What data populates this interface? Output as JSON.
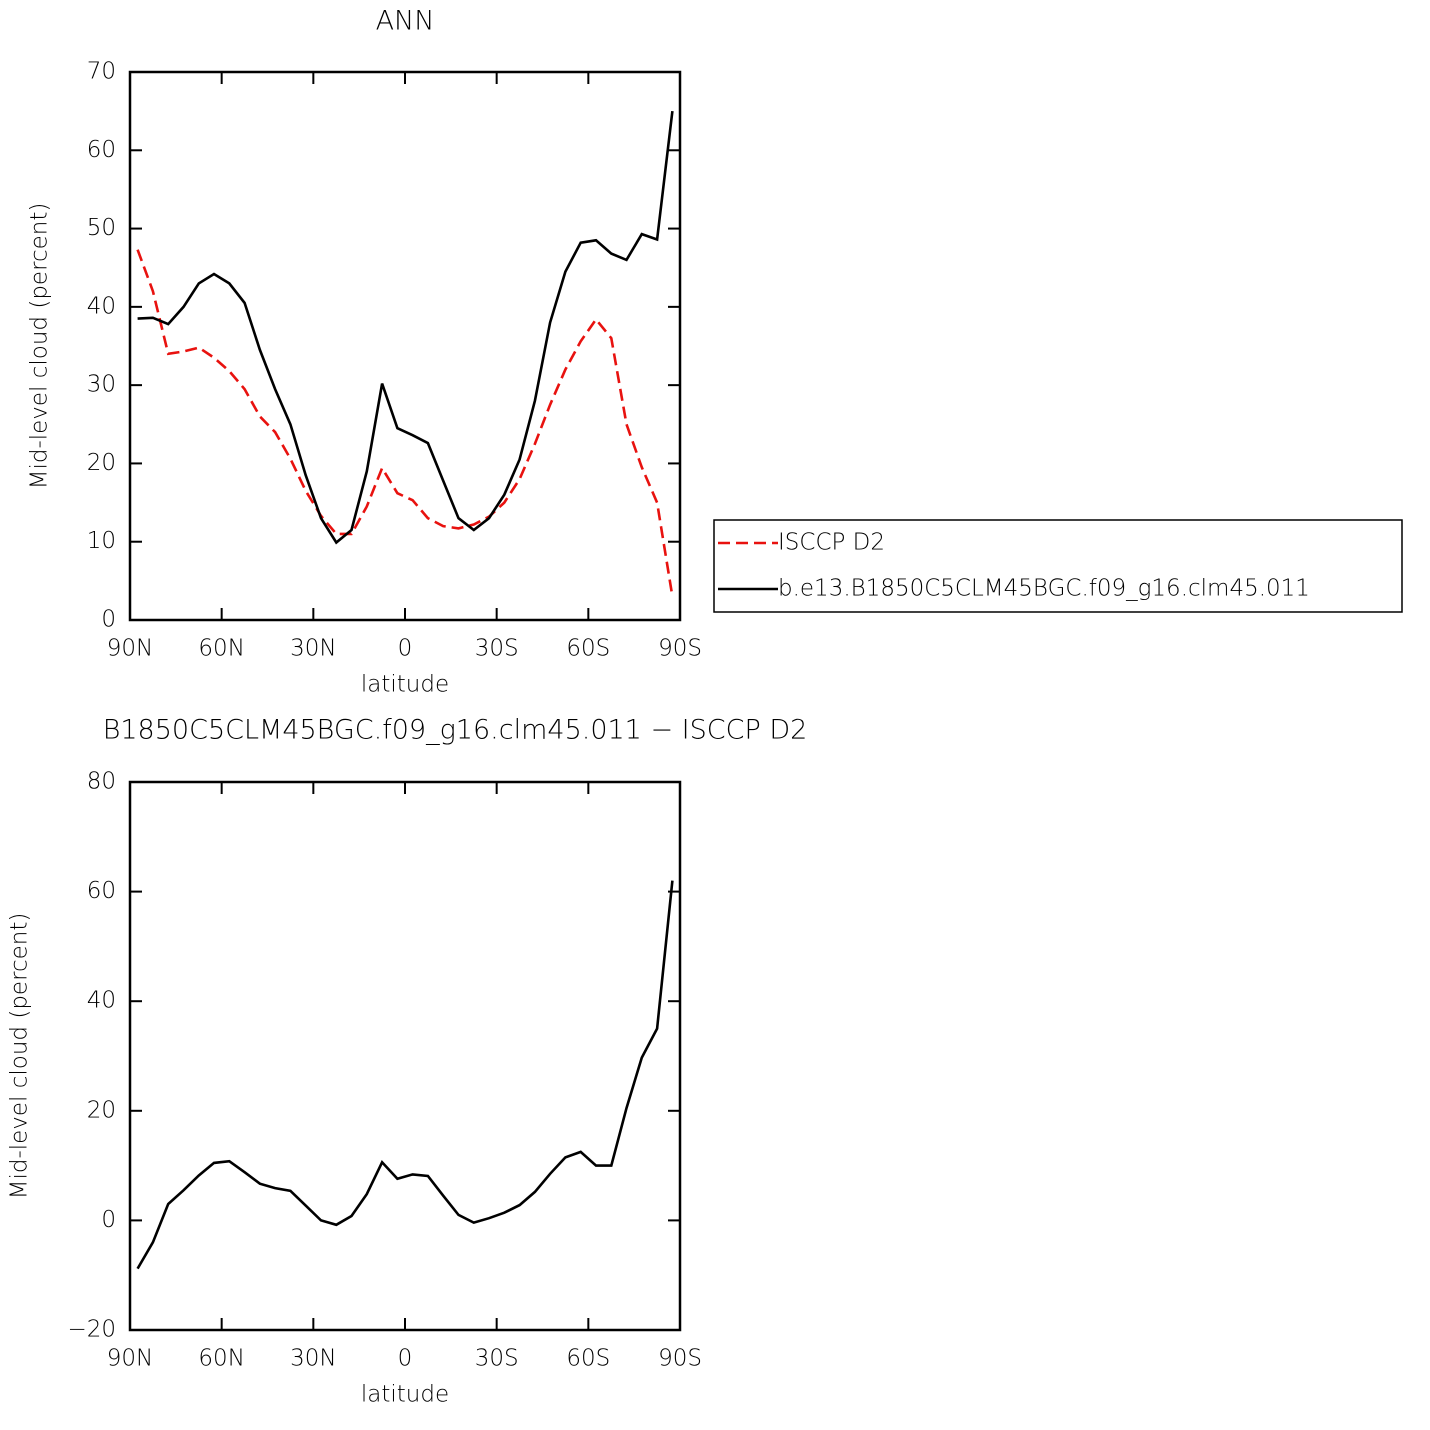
{
  "chart_data": [
    {
      "type": "line",
      "title": "ANN",
      "xlabel": "latitude",
      "ylabel": "Mid-level cloud (percent)",
      "x": [
        87.5,
        82.5,
        77.5,
        72.5,
        67.5,
        62.5,
        57.5,
        52.5,
        47.5,
        42.5,
        37.5,
        32.5,
        27.5,
        22.5,
        17.5,
        12.5,
        7.5,
        2.5,
        -2.5,
        -7.5,
        -12.5,
        -17.5,
        -22.5,
        -27.5,
        -32.5,
        -37.5,
        -42.5,
        -47.5,
        -52.5,
        -57.5,
        -62.5,
        -67.5,
        -72.5,
        -77.5,
        -82.5,
        -87.5
      ],
      "series": [
        {
          "name": "ISCCP D2",
          "color": "#e8120f",
          "line_style": "dashed",
          "values": [
            47.3,
            42,
            34,
            34.3,
            34.8,
            33.5,
            31.8,
            29.5,
            26,
            24,
            20.6,
            16.5,
            13.3,
            11,
            11,
            14.5,
            19.4,
            16.2,
            15.3,
            13,
            12,
            11.7,
            12.2,
            13.2,
            15,
            18,
            22.5,
            27.5,
            32,
            35.6,
            38.4,
            36,
            25,
            19.5,
            15,
            3
          ]
        },
        {
          "name": "b.e13.B1850C5CLM45BGC.f09_g16.clm45.011",
          "color": "#000000",
          "line_style": "solid",
          "values": [
            38.5,
            38.6,
            37.8,
            40,
            43,
            44.2,
            43,
            40.5,
            34.5,
            29.5,
            25,
            18.5,
            13,
            9.9,
            11.5,
            19,
            30.2,
            24.5,
            23.6,
            22.6,
            17.8,
            13,
            11.5,
            13,
            16,
            20.5,
            28,
            38,
            44.5,
            48.2,
            48.5,
            46.8,
            46,
            49.3,
            48.6,
            65
          ]
        }
      ],
      "xlim": [
        90,
        -90
      ],
      "xticks": [
        {
          "value": 90,
          "label": "90N"
        },
        {
          "value": 60,
          "label": "60N"
        },
        {
          "value": 30,
          "label": "30N"
        },
        0,
        {
          "value": -30,
          "label": "30S"
        },
        {
          "value": -60,
          "label": "60S"
        },
        {
          "value": -90,
          "label": "90S"
        }
      ],
      "ylim": [
        0,
        70
      ],
      "yticks": [
        0,
        10,
        20,
        30,
        40,
        50,
        60,
        70
      ],
      "grid": false,
      "legend": "right"
    },
    {
      "type": "line",
      "title": "B1850C5CLM45BGC.f09_g16.clm45.011 − ISCCP D2",
      "xlabel": "latitude",
      "ylabel": "Mid-level cloud (percent)",
      "x": [
        87.5,
        82.5,
        77.5,
        72.5,
        67.5,
        62.5,
        57.5,
        52.5,
        47.5,
        42.5,
        37.5,
        32.5,
        27.5,
        22.5,
        17.5,
        12.5,
        7.5,
        2.5,
        -2.5,
        -7.5,
        -12.5,
        -17.5,
        -22.5,
        -27.5,
        -32.5,
        -37.5,
        -42.5,
        -47.5,
        -52.5,
        -57.5,
        -62.5,
        -67.5,
        -72.5,
        -77.5,
        -82.5,
        -87.5
      ],
      "series": [
        {
          "color": "#000000",
          "line_style": "solid",
          "values": [
            -8.8,
            -4,
            3,
            5.5,
            8.2,
            10.5,
            10.8,
            8.8,
            6.7,
            5.9,
            5.4,
            2.7,
            0,
            -0.8,
            0.8,
            4.8,
            10.6,
            7.6,
            8.4,
            8.1,
            4.5,
            1,
            -0.4,
            0.4,
            1.4,
            2.8,
            5.2,
            8.5,
            11.5,
            12.5,
            10,
            10,
            20.5,
            29.7,
            35,
            62
          ]
        }
      ],
      "xlim": [
        90,
        -90
      ],
      "xticks": [
        {
          "value": 90,
          "label": "90N"
        },
        {
          "value": 60,
          "label": "60N"
        },
        {
          "value": 30,
          "label": "30N"
        },
        0,
        {
          "value": -30,
          "label": "30S"
        },
        {
          "value": -60,
          "label": "60S"
        },
        {
          "value": -90,
          "label": "90S"
        }
      ],
      "ylim": [
        -20,
        80
      ],
      "yticks": [
        {
          "value": -20,
          "label": "−20"
        },
        0,
        20,
        40,
        60,
        80
      ],
      "grid": false
    }
  ]
}
